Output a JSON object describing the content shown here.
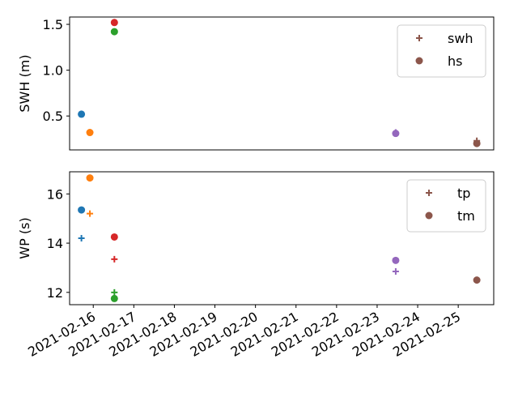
{
  "chart_data": [
    {
      "type": "scatter",
      "title": "",
      "xlabel": "",
      "ylabel": "SWH (m)",
      "x_axis": "date",
      "xlim": [
        "2021-02-15T10:00",
        "2021-02-25T21:00"
      ],
      "ylim": [
        0.13,
        1.58
      ],
      "yticks": [
        0.5,
        1.0,
        1.5
      ],
      "ytick_labels": [
        "0.5",
        "1.0",
        "1.5"
      ],
      "show_xticks": false,
      "grid": false,
      "legend": {
        "position": "top-right",
        "entries": [
          {
            "label": "swh",
            "marker": "plus",
            "color": "#8c564b"
          },
          {
            "label": "hs",
            "marker": "circle",
            "color": "#8c564b"
          }
        ]
      },
      "series": [
        {
          "color": "#1f77b4",
          "points": [
            {
              "x": "2021-02-15T17:00",
              "y": 0.52,
              "marker": "circle"
            }
          ]
        },
        {
          "color": "#ff7f0e",
          "points": [
            {
              "x": "2021-02-15T22:00",
              "y": 0.32,
              "marker": "circle"
            }
          ]
        },
        {
          "color": "#2ca02c",
          "points": [
            {
              "x": "2021-02-16T12:30",
              "y": 1.42,
              "marker": "circle"
            }
          ]
        },
        {
          "color": "#d62728",
          "points": [
            {
              "x": "2021-02-16T12:30",
              "y": 1.52,
              "marker": "circle"
            }
          ]
        },
        {
          "color": "#9467bd",
          "points": [
            {
              "x": "2021-02-23T11:00",
              "y": 0.32,
              "marker": "plus"
            },
            {
              "x": "2021-02-23T11:00",
              "y": 0.31,
              "marker": "circle"
            }
          ]
        },
        {
          "color": "#8c564b",
          "points": [
            {
              "x": "2021-02-25T11:00",
              "y": 0.23,
              "marker": "plus"
            },
            {
              "x": "2021-02-25T11:00",
              "y": 0.2,
              "marker": "circle"
            }
          ]
        }
      ]
    },
    {
      "type": "scatter",
      "title": "",
      "xlabel": "",
      "ylabel": "WP (s)",
      "x_axis": "date",
      "xlim": [
        "2021-02-15T10:00",
        "2021-02-25T21:00"
      ],
      "ylim": [
        11.5,
        16.9
      ],
      "yticks": [
        12,
        14,
        16
      ],
      "ytick_labels": [
        "12",
        "14",
        "16"
      ],
      "xticks": [
        "2021-02-16",
        "2021-02-17",
        "2021-02-18",
        "2021-02-19",
        "2021-02-20",
        "2021-02-21",
        "2021-02-22",
        "2021-02-23",
        "2021-02-24",
        "2021-02-25"
      ],
      "xtick_labels": [
        "2021-02-16",
        "2021-02-17",
        "2021-02-18",
        "2021-02-19",
        "2021-02-20",
        "2021-02-21",
        "2021-02-22",
        "2021-02-23",
        "2021-02-24",
        "2021-02-25"
      ],
      "xtick_rotation": 30,
      "grid": false,
      "legend": {
        "position": "top-right",
        "entries": [
          {
            "label": "tp",
            "marker": "plus",
            "color": "#8c564b"
          },
          {
            "label": "tm",
            "marker": "circle",
            "color": "#8c564b"
          }
        ]
      },
      "series": [
        {
          "color": "#1f77b4",
          "points": [
            {
              "x": "2021-02-15T17:00",
              "y": 14.2,
              "marker": "plus"
            },
            {
              "x": "2021-02-15T17:00",
              "y": 15.35,
              "marker": "circle"
            }
          ]
        },
        {
          "color": "#ff7f0e",
          "points": [
            {
              "x": "2021-02-15T22:00",
              "y": 15.2,
              "marker": "plus"
            },
            {
              "x": "2021-02-15T22:00",
              "y": 16.65,
              "marker": "circle"
            }
          ]
        },
        {
          "color": "#2ca02c",
          "points": [
            {
              "x": "2021-02-16T12:30",
              "y": 12.0,
              "marker": "plus"
            },
            {
              "x": "2021-02-16T12:30",
              "y": 11.75,
              "marker": "circle"
            }
          ]
        },
        {
          "color": "#d62728",
          "points": [
            {
              "x": "2021-02-16T12:30",
              "y": 13.35,
              "marker": "plus"
            },
            {
              "x": "2021-02-16T12:30",
              "y": 14.25,
              "marker": "circle"
            }
          ]
        },
        {
          "color": "#9467bd",
          "points": [
            {
              "x": "2021-02-23T11:00",
              "y": 12.85,
              "marker": "plus"
            },
            {
              "x": "2021-02-23T11:00",
              "y": 13.3,
              "marker": "circle"
            }
          ]
        },
        {
          "color": "#8c564b",
          "points": [
            {
              "x": "2021-02-25T11:00",
              "y": 12.5,
              "marker": "plus"
            },
            {
              "x": "2021-02-25T11:00",
              "y": 12.5,
              "marker": "circle"
            }
          ]
        }
      ]
    }
  ]
}
